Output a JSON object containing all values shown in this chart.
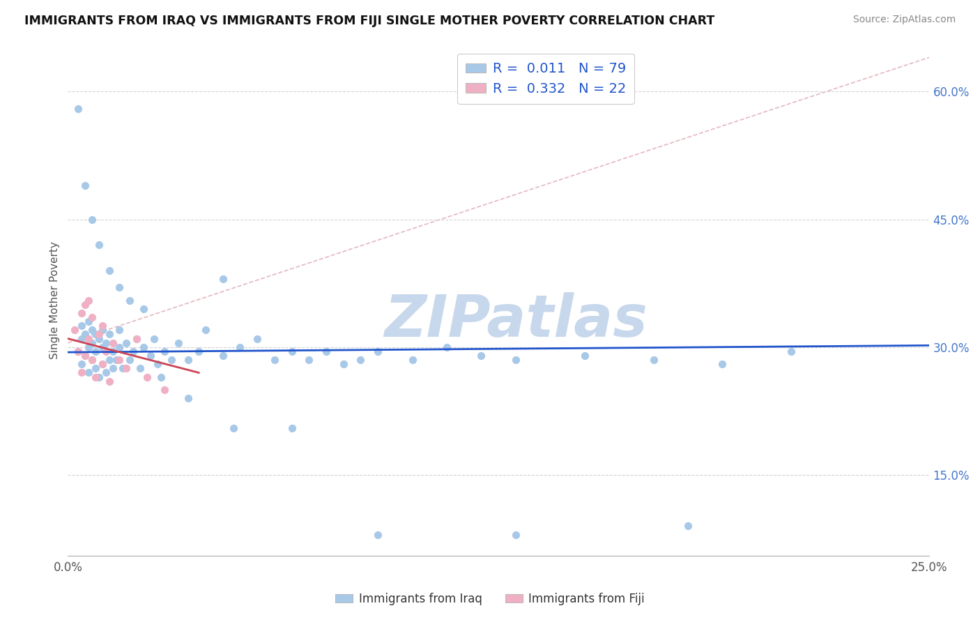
{
  "title": "IMMIGRANTS FROM IRAQ VS IMMIGRANTS FROM FIJI SINGLE MOTHER POVERTY CORRELATION CHART",
  "source": "Source: ZipAtlas.com",
  "ylabel": "Single Mother Poverty",
  "xlim": [
    0.0,
    0.25
  ],
  "ylim": [
    0.055,
    0.655
  ],
  "yticks_right": [
    0.15,
    0.3,
    0.45,
    0.6
  ],
  "ytick_labels_right": [
    "15.0%",
    "30.0%",
    "45.0%",
    "60.0%"
  ],
  "xtick_positions": [
    0.0,
    0.05,
    0.1,
    0.15,
    0.2,
    0.25
  ],
  "xtick_labels": [
    "0.0%",
    "",
    "",
    "",
    "",
    "25.0%"
  ],
  "legend_iraq_r": "0.011",
  "legend_iraq_n": "79",
  "legend_fiji_r": "0.332",
  "legend_fiji_n": "22",
  "color_iraq": "#a8c8e8",
  "color_fiji": "#f0b0c4",
  "color_trendline_iraq": "#2255cc",
  "color_trendline_fiji": "#cc4455",
  "color_diagline": "#e0b0b8",
  "color_gridline": "#d4d4d4",
  "watermark": "ZIPatlas",
  "watermark_color": "#c8d8ec",
  "iraq_x": [
    0.003,
    0.004,
    0.004,
    0.004,
    0.005,
    0.005,
    0.006,
    0.006,
    0.006,
    0.007,
    0.007,
    0.007,
    0.008,
    0.008,
    0.008,
    0.009,
    0.009,
    0.01,
    0.01,
    0.01,
    0.011,
    0.011,
    0.012,
    0.012,
    0.013,
    0.013,
    0.014,
    0.015,
    0.015,
    0.016,
    0.017,
    0.018,
    0.019,
    0.02,
    0.021,
    0.022,
    0.024,
    0.025,
    0.026,
    0.028,
    0.03,
    0.032,
    0.035,
    0.038,
    0.04,
    0.045,
    0.05,
    0.055,
    0.06,
    0.065,
    0.07,
    0.075,
    0.08,
    0.085,
    0.09,
    0.1,
    0.11,
    0.12,
    0.13,
    0.15,
    0.17,
    0.19,
    0.21,
    0.003,
    0.005,
    0.007,
    0.009,
    0.012,
    0.015,
    0.018,
    0.022,
    0.027,
    0.035,
    0.048,
    0.065,
    0.09,
    0.13,
    0.18,
    0.045
  ],
  "iraq_y": [
    0.295,
    0.31,
    0.28,
    0.325,
    0.29,
    0.315,
    0.27,
    0.3,
    0.33,
    0.285,
    0.305,
    0.32,
    0.275,
    0.295,
    0.315,
    0.265,
    0.31,
    0.28,
    0.3,
    0.32,
    0.27,
    0.305,
    0.285,
    0.315,
    0.275,
    0.295,
    0.285,
    0.3,
    0.32,
    0.275,
    0.305,
    0.285,
    0.295,
    0.31,
    0.275,
    0.3,
    0.29,
    0.31,
    0.28,
    0.295,
    0.285,
    0.305,
    0.285,
    0.295,
    0.32,
    0.29,
    0.3,
    0.31,
    0.285,
    0.295,
    0.285,
    0.295,
    0.28,
    0.285,
    0.295,
    0.285,
    0.3,
    0.29,
    0.285,
    0.29,
    0.285,
    0.28,
    0.295,
    0.58,
    0.49,
    0.45,
    0.42,
    0.39,
    0.37,
    0.355,
    0.345,
    0.265,
    0.24,
    0.205,
    0.205,
    0.08,
    0.08,
    0.09,
    0.38
  ],
  "fiji_x": [
    0.002,
    0.003,
    0.004,
    0.004,
    0.005,
    0.005,
    0.006,
    0.006,
    0.007,
    0.007,
    0.008,
    0.009,
    0.01,
    0.01,
    0.011,
    0.012,
    0.013,
    0.015,
    0.017,
    0.02,
    0.023,
    0.028
  ],
  "fiji_y": [
    0.32,
    0.295,
    0.34,
    0.27,
    0.35,
    0.29,
    0.31,
    0.355,
    0.285,
    0.335,
    0.265,
    0.315,
    0.28,
    0.325,
    0.295,
    0.26,
    0.305,
    0.285,
    0.275,
    0.31,
    0.265,
    0.25
  ],
  "iraq_trendline_x": [
    0.0,
    0.25
  ],
  "iraq_trendline_y": [
    0.294,
    0.302
  ],
  "fiji_trendline_x": [
    0.0,
    0.038
  ],
  "fiji_trendline_y": [
    0.31,
    0.27
  ],
  "diagline_x": [
    0.0,
    0.25
  ],
  "diagline_y": [
    0.305,
    0.64
  ]
}
